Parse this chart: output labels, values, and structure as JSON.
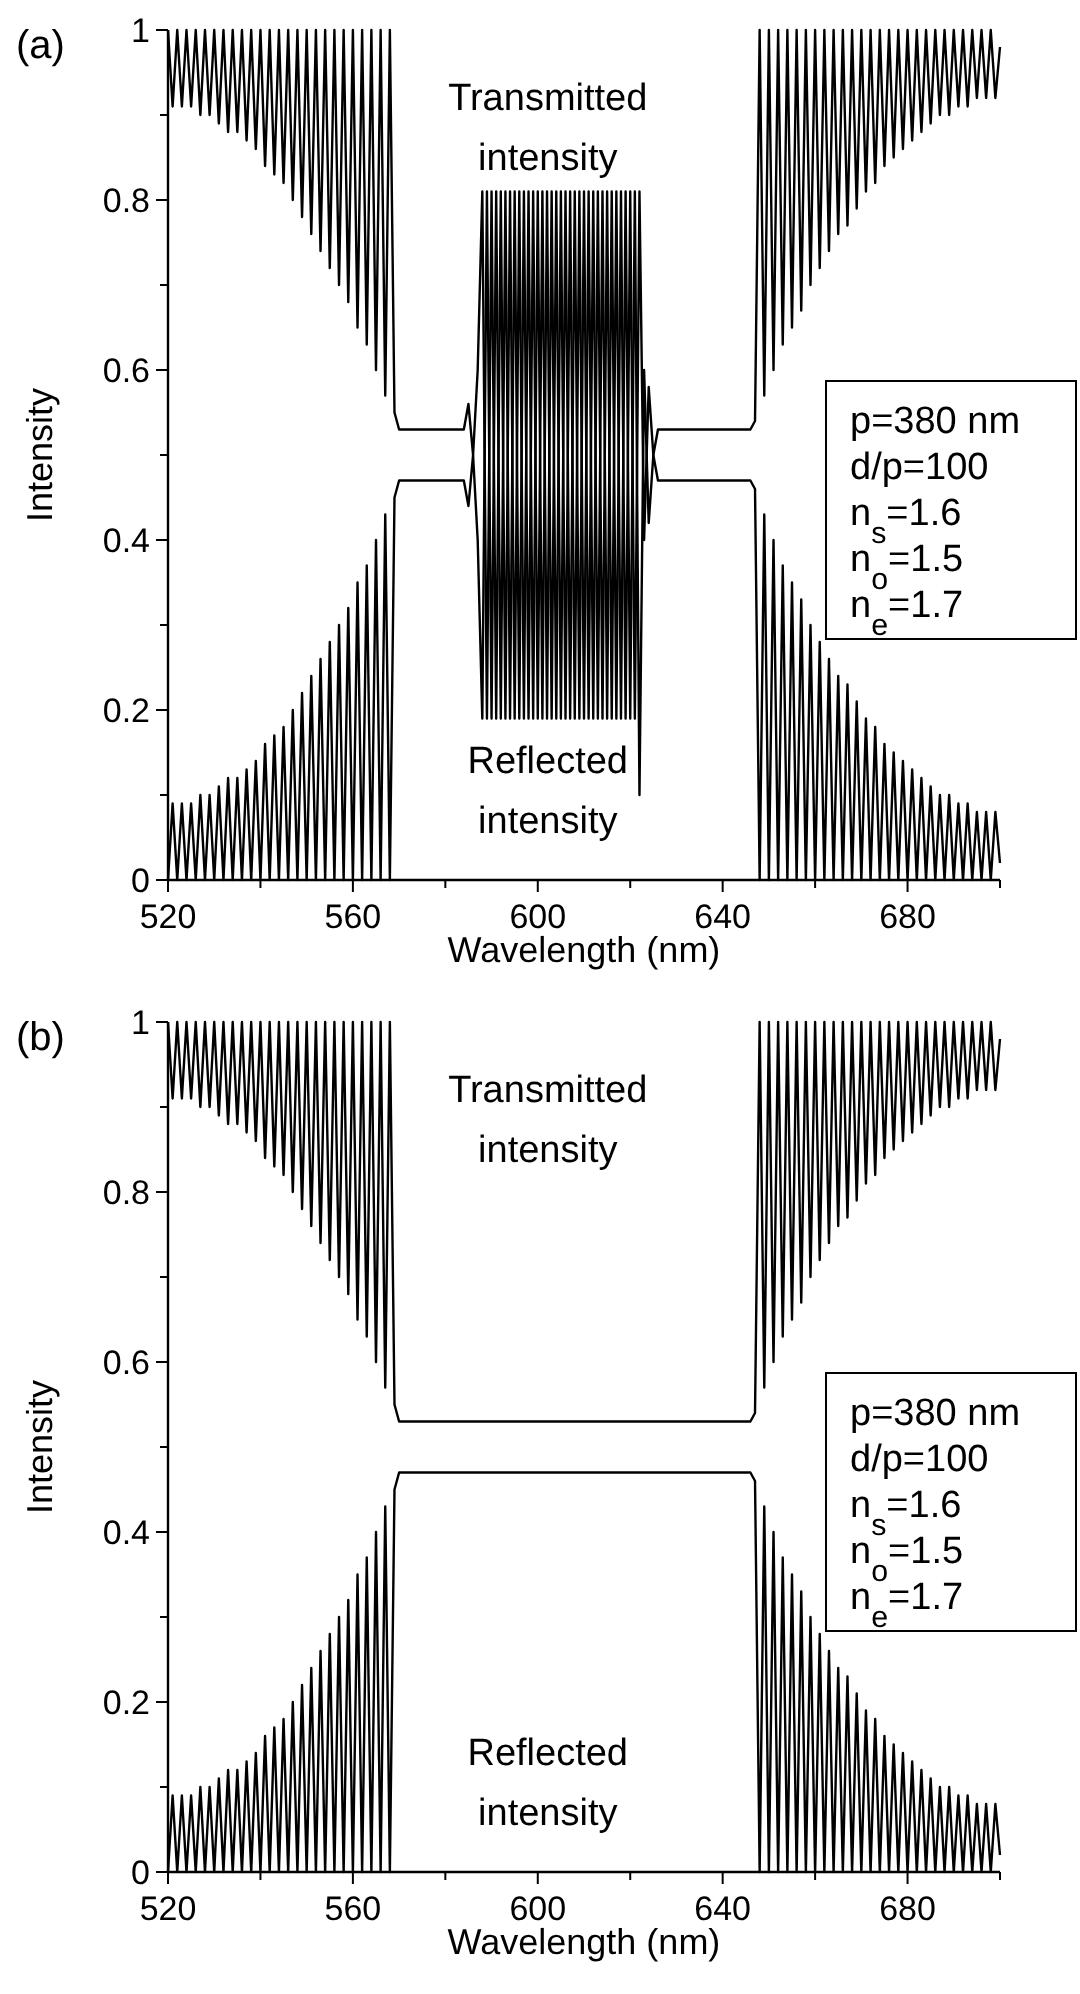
{
  "chart_data": [
    {
      "type": "line",
      "title": "(a)",
      "xlabel": "Wavelength (nm)",
      "ylabel": "Intensity",
      "xlim": [
        520,
        700
      ],
      "ylim": [
        0,
        1
      ],
      "xticks": [
        520,
        {
          "value": 540,
          "label": null
        },
        560,
        {
          "value": 580,
          "label": null
        },
        600,
        {
          "value": 620,
          "label": null
        },
        640,
        {
          "value": 660,
          "label": null
        },
        680,
        {
          "value": 700,
          "label": null
        }
      ],
      "yticks": [
        0,
        {
          "value": 0.1,
          "label": null
        },
        0.2,
        {
          "value": 0.3,
          "label": null
        },
        0.4,
        {
          "value": 0.5,
          "label": null
        },
        0.6,
        {
          "value": 0.7,
          "label": null
        },
        0.8,
        {
          "value": 0.9,
          "label": null
        },
        1
      ],
      "x": [
        520,
        521,
        522,
        523,
        524,
        525,
        526,
        527,
        528,
        529,
        530,
        531,
        532,
        533,
        534,
        535,
        536,
        537,
        538,
        539,
        540,
        541,
        542,
        543,
        544,
        545,
        546,
        547,
        548,
        549,
        550,
        551,
        552,
        553,
        554,
        555,
        556,
        557,
        558,
        559,
        560,
        561,
        562,
        563,
        564,
        565,
        566,
        567,
        568,
        569,
        570,
        584,
        585,
        586,
        587,
        588,
        589,
        590,
        591,
        592,
        593,
        594,
        595,
        596,
        597,
        598,
        599,
        600,
        601,
        602,
        603,
        604,
        605,
        606,
        607,
        608,
        609,
        610,
        611,
        612,
        613,
        614,
        615,
        616,
        617,
        618,
        619,
        620,
        621,
        622,
        623,
        624,
        625,
        626,
        646,
        647,
        648,
        649,
        650,
        651,
        652,
        653,
        654,
        655,
        656,
        657,
        658,
        659,
        660,
        661,
        662,
        663,
        664,
        665,
        666,
        667,
        668,
        669,
        670,
        671,
        672,
        673,
        674,
        675,
        676,
        677,
        678,
        679,
        680,
        681,
        682,
        683,
        684,
        685,
        686,
        687,
        688,
        689,
        690,
        691,
        692,
        693,
        694,
        695,
        696,
        697,
        698,
        699,
        700
      ],
      "series": [
        {
          "name": "Transmitted intensity",
          "color": "#000000",
          "values": [
            1,
            0.91,
            1,
            0.91,
            1,
            0.91,
            1,
            0.9,
            1,
            0.9,
            1,
            0.89,
            1,
            0.88,
            1,
            0.88,
            1,
            0.87,
            1,
            0.86,
            1,
            0.84,
            1,
            0.83,
            1,
            0.82,
            1,
            0.8,
            1,
            0.78,
            1,
            0.76,
            1,
            0.74,
            1,
            0.72,
            1,
            0.7,
            1,
            0.68,
            1,
            0.65,
            1,
            0.63,
            1,
            0.6,
            1,
            0.57,
            1,
            0.55,
            0.53,
            0.53,
            0.56,
            0.5,
            0.6,
            0.81,
            0.19,
            0.81,
            0.19,
            0.81,
            0.19,
            0.81,
            0.19,
            0.81,
            0.19,
            0.81,
            0.19,
            0.81,
            0.19,
            0.81,
            0.19,
            0.81,
            0.19,
            0.81,
            0.19,
            0.81,
            0.19,
            0.81,
            0.19,
            0.81,
            0.19,
            0.81,
            0.19,
            0.81,
            0.19,
            0.81,
            0.19,
            0.81,
            0.19,
            0.81,
            0.4,
            0.58,
            0.5,
            0.53,
            0.53,
            0.54,
            1,
            0.57,
            1,
            0.6,
            1,
            0.63,
            1,
            0.65,
            1,
            0.67,
            1,
            0.7,
            1,
            0.72,
            1,
            0.74,
            1,
            0.76,
            1,
            0.77,
            1,
            0.79,
            1,
            0.81,
            1,
            0.82,
            1,
            0.84,
            1,
            0.85,
            1,
            0.86,
            1,
            0.87,
            1,
            0.88,
            1,
            0.89,
            1,
            0.9,
            1,
            0.9,
            1,
            0.91,
            1,
            0.91,
            1,
            0.92,
            1,
            0.92,
            1,
            0.92,
            0.98
          ]
        },
        {
          "name": "Reflected intensity",
          "color": "#000000",
          "values": [
            0,
            0.09,
            0,
            0.09,
            0,
            0.09,
            0,
            0.1,
            0,
            0.1,
            0,
            0.11,
            0,
            0.12,
            0,
            0.12,
            0,
            0.13,
            0,
            0.14,
            0,
            0.16,
            0,
            0.17,
            0,
            0.18,
            0,
            0.2,
            0,
            0.22,
            0,
            0.24,
            0,
            0.26,
            0,
            0.28,
            0,
            0.3,
            0,
            0.32,
            0,
            0.35,
            0,
            0.37,
            0,
            0.4,
            0,
            0.43,
            0,
            0.45,
            0.47,
            0.47,
            0.44,
            0.5,
            0.4,
            0.19,
            0.81,
            0.19,
            0.81,
            0.19,
            0.81,
            0.19,
            0.81,
            0.19,
            0.81,
            0.19,
            0.81,
            0.19,
            0.81,
            0.19,
            0.81,
            0.19,
            0.81,
            0.19,
            0.81,
            0.19,
            0.81,
            0.19,
            0.81,
            0.19,
            0.81,
            0.19,
            0.81,
            0.19,
            0.81,
            0.19,
            0.81,
            0.19,
            0.81,
            0.1,
            0.6,
            0.42,
            0.5,
            0.47,
            0.47,
            0.46,
            0,
            0.43,
            0,
            0.4,
            0,
            0.37,
            0,
            0.35,
            0,
            0.33,
            0,
            0.3,
            0,
            0.28,
            0,
            0.26,
            0,
            0.24,
            0,
            0.23,
            0,
            0.21,
            0,
            0.19,
            0,
            0.18,
            0,
            0.16,
            0,
            0.15,
            0,
            0.14,
            0,
            0.13,
            0,
            0.12,
            0,
            0.11,
            0,
            0.1,
            0,
            0.1,
            0,
            0.09,
            0,
            0.09,
            0,
            0.08,
            0,
            0.08,
            0,
            0.08,
            0.02
          ]
        }
      ],
      "annotations": [
        "p=380 nm",
        "d/p=100",
        "n$_{s}$=1.6",
        "n$_{o}$=1.5",
        "n$_{e}$=1.7"
      ]
    },
    {
      "type": "line",
      "title": "(b)",
      "xlabel": "Wavelength (nm)",
      "ylabel": "Intensity",
      "xlim": [
        520,
        700
      ],
      "ylim": [
        0,
        1
      ],
      "xticks": [
        520,
        {
          "value": 540,
          "label": null
        },
        560,
        {
          "value": 580,
          "label": null
        },
        600,
        {
          "value": 620,
          "label": null
        },
        640,
        {
          "value": 660,
          "label": null
        },
        680,
        {
          "value": 700,
          "label": null
        }
      ],
      "yticks": [
        0,
        {
          "value": 0.1,
          "label": null
        },
        0.2,
        {
          "value": 0.3,
          "label": null
        },
        0.4,
        {
          "value": 0.5,
          "label": null
        },
        0.6,
        {
          "value": 0.7,
          "label": null
        },
        0.8,
        {
          "value": 0.9,
          "label": null
        },
        1
      ],
      "x": [
        520,
        521,
        522,
        523,
        524,
        525,
        526,
        527,
        528,
        529,
        530,
        531,
        532,
        533,
        534,
        535,
        536,
        537,
        538,
        539,
        540,
        541,
        542,
        543,
        544,
        545,
        546,
        547,
        548,
        549,
        550,
        551,
        552,
        553,
        554,
        555,
        556,
        557,
        558,
        559,
        560,
        561,
        562,
        563,
        564,
        565,
        566,
        567,
        568,
        569,
        570,
        646,
        647,
        648,
        649,
        650,
        651,
        652,
        653,
        654,
        655,
        656,
        657,
        658,
        659,
        660,
        661,
        662,
        663,
        664,
        665,
        666,
        667,
        668,
        669,
        670,
        671,
        672,
        673,
        674,
        675,
        676,
        677,
        678,
        679,
        680,
        681,
        682,
        683,
        684,
        685,
        686,
        687,
        688,
        689,
        690,
        691,
        692,
        693,
        694,
        695,
        696,
        697,
        698,
        699,
        700
      ],
      "series": [
        {
          "name": "Transmitted intensity",
          "color": "#000000",
          "values": [
            1,
            0.91,
            1,
            0.91,
            1,
            0.91,
            1,
            0.9,
            1,
            0.9,
            1,
            0.89,
            1,
            0.88,
            1,
            0.88,
            1,
            0.87,
            1,
            0.86,
            1,
            0.84,
            1,
            0.83,
            1,
            0.82,
            1,
            0.8,
            1,
            0.78,
            1,
            0.76,
            1,
            0.74,
            1,
            0.72,
            1,
            0.7,
            1,
            0.68,
            1,
            0.65,
            1,
            0.63,
            1,
            0.6,
            1,
            0.57,
            1,
            0.55,
            0.53,
            0.53,
            0.54,
            1,
            0.57,
            1,
            0.6,
            1,
            0.63,
            1,
            0.65,
            1,
            0.67,
            1,
            0.7,
            1,
            0.72,
            1,
            0.74,
            1,
            0.76,
            1,
            0.77,
            1,
            0.79,
            1,
            0.81,
            1,
            0.82,
            1,
            0.84,
            1,
            0.85,
            1,
            0.86,
            1,
            0.87,
            1,
            0.88,
            1,
            0.89,
            1,
            0.9,
            1,
            0.9,
            1,
            0.91,
            1,
            0.91,
            1,
            0.92,
            1,
            0.92,
            1,
            0.92,
            0.98
          ]
        },
        {
          "name": "Reflected intensity",
          "color": "#000000",
          "values": [
            0,
            0.09,
            0,
            0.09,
            0,
            0.09,
            0,
            0.1,
            0,
            0.1,
            0,
            0.11,
            0,
            0.12,
            0,
            0.12,
            0,
            0.13,
            0,
            0.14,
            0,
            0.16,
            0,
            0.17,
            0,
            0.18,
            0,
            0.2,
            0,
            0.22,
            0,
            0.24,
            0,
            0.26,
            0,
            0.28,
            0,
            0.3,
            0,
            0.32,
            0,
            0.35,
            0,
            0.37,
            0,
            0.4,
            0,
            0.43,
            0,
            0.45,
            0.47,
            0.47,
            0.46,
            0,
            0.43,
            0,
            0.4,
            0,
            0.37,
            0,
            0.35,
            0,
            0.33,
            0,
            0.3,
            0,
            0.28,
            0,
            0.26,
            0,
            0.24,
            0,
            0.23,
            0,
            0.21,
            0,
            0.19,
            0,
            0.18,
            0,
            0.16,
            0,
            0.15,
            0,
            0.14,
            0,
            0.13,
            0,
            0.12,
            0,
            0.11,
            0,
            0.1,
            0,
            0.1,
            0,
            0.09,
            0,
            0.09,
            0,
            0.08,
            0,
            0.08,
            0,
            0.08,
            0.02
          ]
        }
      ],
      "annotations": [
        "p=380 nm",
        "d/p=100",
        "n$_{s}$=1.6",
        "n$_{o}$=1.5",
        "n$_{e}$=1.7"
      ]
    }
  ]
}
